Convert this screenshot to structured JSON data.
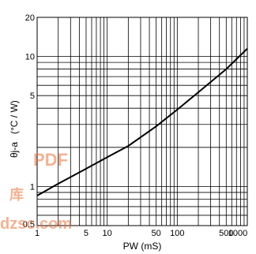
{
  "chart_data": {
    "type": "line",
    "xlabel": "PW  (mS)",
    "ylabel_main": "θj-a",
    "ylabel_unit": "(°C / W)",
    "x_scale": "log",
    "y_scale": "log",
    "xlim": [
      1,
      1000
    ],
    "ylim": [
      0.5,
      20
    ],
    "grid": true,
    "x_ticks": [
      {
        "value": 1,
        "label": "1"
      },
      {
        "value": 5,
        "label": "5"
      },
      {
        "value": 10,
        "label": "10"
      },
      {
        "value": 50,
        "label": "50"
      },
      {
        "value": 100,
        "label": "100"
      },
      {
        "value": 500,
        "label": "500"
      },
      {
        "value": 1000,
        "label": "1000"
      }
    ],
    "y_ticks": [
      {
        "value": 0.5,
        "label": "0.5"
      },
      {
        "value": 1,
        "label": "1"
      },
      {
        "value": 5,
        "label": "5"
      },
      {
        "value": 10,
        "label": "10"
      },
      {
        "value": 20,
        "label": "20"
      }
    ],
    "x_grid_values": [
      1,
      2,
      3,
      4,
      5,
      6,
      7,
      8,
      9,
      10,
      20,
      30,
      40,
      50,
      60,
      70,
      80,
      90,
      100,
      200,
      300,
      400,
      500,
      600,
      700,
      800,
      900,
      1000
    ],
    "y_grid_values": [
      0.5,
      0.6,
      0.7,
      0.8,
      0.9,
      1,
      2,
      3,
      4,
      5,
      6,
      7,
      8,
      9,
      10,
      20
    ],
    "series": [
      {
        "x": [
          1,
          2,
          3,
          5,
          10,
          20,
          50,
          100,
          200,
          500,
          1000
        ],
        "y": [
          0.85,
          1.05,
          1.18,
          1.37,
          1.68,
          2.05,
          2.9,
          3.9,
          5.3,
          8.0,
          11.5
        ]
      }
    ]
  },
  "watermark": {
    "line1": "PDF",
    "line2": "库",
    "line3": "dzsc.com"
  }
}
